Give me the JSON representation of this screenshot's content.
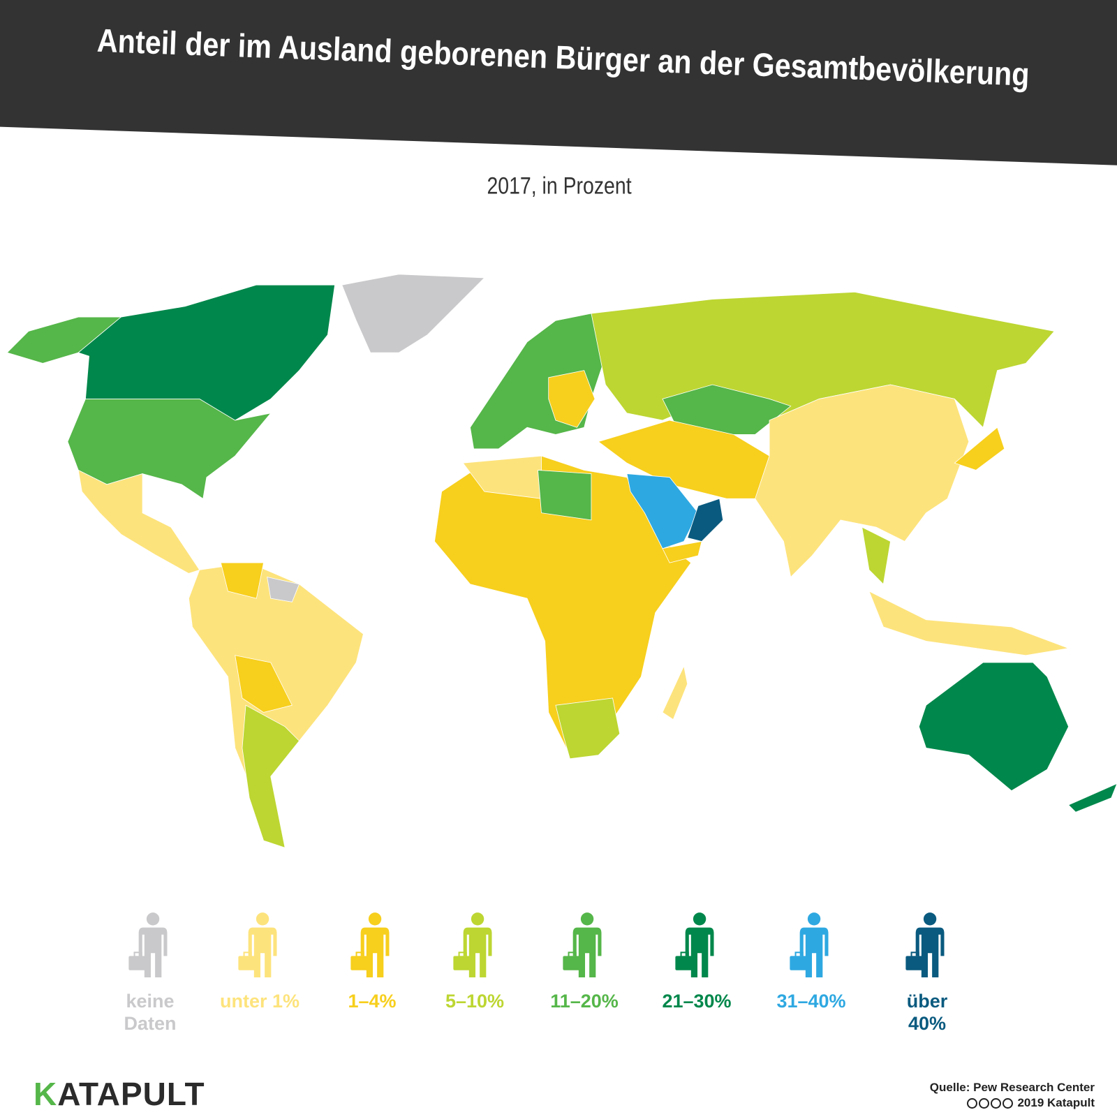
{
  "header": {
    "title": "Anteil der im Ausland geborenen Bürger an der Gesamtbevölkerung",
    "subtitle": "2017, in Prozent"
  },
  "legend": {
    "items": [
      {
        "label": "keine Daten",
        "color": "#c9c9cb"
      },
      {
        "label": "unter 1%",
        "color": "#fde37c"
      },
      {
        "label": "1–4%",
        "color": "#f7cf1d"
      },
      {
        "label": "5–10%",
        "color": "#bdd632"
      },
      {
        "label": "11–20%",
        "color": "#55b649"
      },
      {
        "label": "21–30%",
        "color": "#00874b"
      },
      {
        "label": "31–40%",
        "color": "#2ea8e1"
      },
      {
        "label": "über 40%",
        "color": "#0a5a7f"
      }
    ]
  },
  "footer": {
    "logo": "KATAPULT",
    "source": "Quelle: Pew Research Center",
    "copyright": "2019 Katapult"
  }
}
